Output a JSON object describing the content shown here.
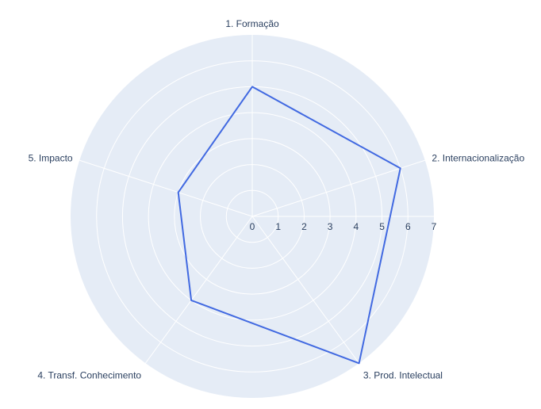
{
  "chart_data": {
    "type": "radar",
    "categories": [
      "1. Formação",
      "2. Internacionalização",
      "3. Prod. Intelectual",
      "4. Transf. Conhecimento",
      "5. Impacto"
    ],
    "series": [
      {
        "values": [
          5,
          6,
          7,
          4,
          3
        ],
        "color": "#4169e1"
      }
    ],
    "radial_range": [
      0,
      7
    ],
    "radial_ticks": [
      "0",
      "1",
      "2",
      "3",
      "4",
      "5",
      "6",
      "7"
    ],
    "grid": true,
    "background_color": "#e5ecf6",
    "grid_color": "#ffffff",
    "text_color": "#2a3f5f"
  }
}
